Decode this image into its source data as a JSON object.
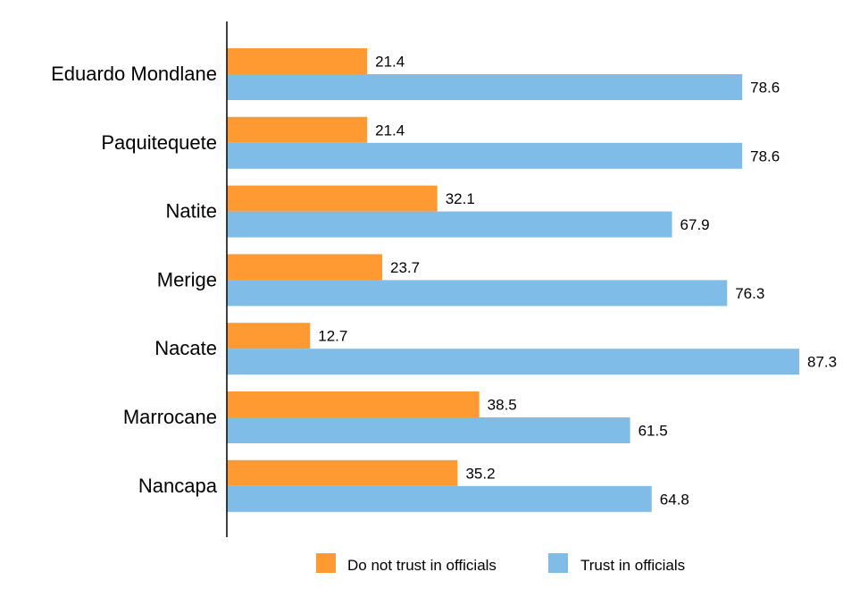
{
  "chart_data": {
    "type": "bar",
    "orientation": "horizontal",
    "categories": [
      "Eduardo Mondlane",
      "Paquitequete",
      "Natite",
      "Merige",
      "Nacate",
      "Marrocane",
      "Nancapa"
    ],
    "series": [
      {
        "name": "Do not trust in officials",
        "color": "#FF9A33",
        "values": [
          21.4,
          21.4,
          32.1,
          23.7,
          12.7,
          38.5,
          35.2
        ]
      },
      {
        "name": "Trust in officials",
        "color": "#7FBCE8",
        "values": [
          78.6,
          78.6,
          67.9,
          76.3,
          87.3,
          61.5,
          64.8
        ]
      }
    ],
    "xlim": [
      0,
      87.3
    ],
    "grid": false,
    "legend_position": "bottom"
  }
}
